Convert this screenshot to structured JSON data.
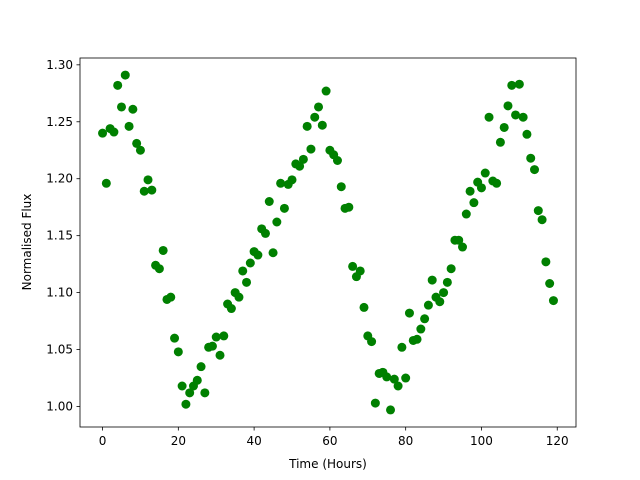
{
  "chart_data": {
    "type": "scatter",
    "x_label": "Time (Hours)",
    "y_label": "Normalised Flux",
    "x": [
      0,
      1,
      2,
      3,
      4,
      5,
      6,
      7,
      8,
      9,
      10,
      11,
      12,
      13,
      14,
      15,
      16,
      17,
      18,
      19,
      20,
      21,
      22,
      23,
      24,
      25,
      26,
      27,
      28,
      29,
      30,
      31,
      32,
      33,
      34,
      35,
      36,
      37,
      38,
      39,
      40,
      41,
      42,
      43,
      44,
      45,
      46,
      47,
      48,
      49,
      50,
      51,
      52,
      53,
      54,
      55,
      56,
      57,
      58,
      59,
      60,
      61,
      62,
      63,
      64,
      65,
      66,
      67,
      68,
      69,
      70,
      71,
      72,
      73,
      74,
      75,
      76,
      77,
      78,
      79,
      80,
      81,
      82,
      83,
      84,
      85,
      86,
      87,
      88,
      89,
      90,
      91,
      92,
      93,
      94,
      95,
      96,
      97,
      98,
      99,
      100,
      101,
      102,
      103,
      104,
      105,
      106,
      107,
      108,
      109,
      110,
      111,
      112,
      113,
      114,
      115,
      116,
      117,
      118,
      119
    ],
    "values": [
      1.24,
      1.196,
      1.244,
      1.241,
      1.282,
      1.263,
      1.291,
      1.246,
      1.261,
      1.231,
      1.225,
      1.189,
      1.199,
      1.19,
      1.124,
      1.121,
      1.137,
      1.094,
      1.096,
      1.06,
      1.048,
      1.018,
      1.002,
      1.012,
      1.018,
      1.023,
      1.035,
      1.012,
      1.052,
      1.053,
      1.061,
      1.045,
      1.062,
      1.09,
      1.086,
      1.1,
      1.096,
      1.119,
      1.109,
      1.126,
      1.136,
      1.133,
      1.156,
      1.152,
      1.18,
      1.135,
      1.162,
      1.196,
      1.174,
      1.195,
      1.199,
      1.213,
      1.211,
      1.217,
      1.246,
      1.226,
      1.254,
      1.263,
      1.247,
      1.277,
      1.225,
      1.221,
      1.216,
      1.193,
      1.174,
      1.175,
      1.123,
      1.114,
      1.119,
      1.087,
      1.062,
      1.057,
      1.003,
      1.029,
      1.03,
      1.026,
      0.997,
      1.024,
      1.018,
      1.052,
      1.025,
      1.082,
      1.058,
      1.059,
      1.068,
      1.077,
      1.089,
      1.111,
      1.096,
      1.092,
      1.1,
      1.109,
      1.121,
      1.146,
      1.146,
      1.14,
      1.169,
      1.189,
      1.179,
      1.197,
      1.192,
      1.205,
      1.254,
      1.198,
      1.196,
      1.232,
      1.245,
      1.264,
      1.282,
      1.256,
      1.283,
      1.254,
      1.239,
      1.218,
      1.208,
      1.172,
      1.164,
      1.127,
      1.108,
      1.093
    ],
    "color": "#008000",
    "xlim": [
      -5.95,
      124.95
    ],
    "ylim": [
      0.982,
      1.306
    ],
    "xticks": [
      0,
      20,
      40,
      60,
      80,
      100,
      120
    ],
    "yticks": [
      {
        "value": 1.0,
        "label": "1.00"
      },
      1.05,
      {
        "value": 1.1,
        "label": "1.10"
      },
      1.15,
      {
        "value": 1.2,
        "label": "1.20"
      },
      1.25,
      {
        "value": 1.3,
        "label": "1.30"
      }
    ],
    "grid": false
  }
}
